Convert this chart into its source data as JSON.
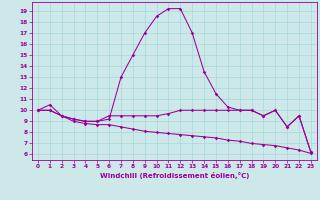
{
  "xlabel": "Windchill (Refroidissement éolien,°C)",
  "xlim": [
    -0.5,
    23.5
  ],
  "ylim": [
    5.5,
    19.8
  ],
  "yticks": [
    6,
    7,
    8,
    9,
    10,
    11,
    12,
    13,
    14,
    15,
    16,
    17,
    18,
    19
  ],
  "xticks": [
    0,
    1,
    2,
    3,
    4,
    5,
    6,
    7,
    8,
    9,
    10,
    11,
    12,
    13,
    14,
    15,
    16,
    17,
    18,
    19,
    20,
    21,
    22,
    23
  ],
  "bg_color": "#cde8e8",
  "line_color": "#990099",
  "grid_color": "#a8d8d8",
  "line1_x": [
    0,
    1,
    2,
    3,
    4,
    5,
    6,
    7,
    8,
    9,
    10,
    11,
    12,
    13,
    14,
    15,
    16,
    17,
    18,
    19,
    20,
    21,
    22,
    23
  ],
  "line1_y": [
    10,
    10.5,
    9.5,
    9.2,
    9.0,
    9.0,
    9.2,
    13.0,
    15.0,
    17.0,
    18.5,
    19.2,
    19.2,
    17.0,
    13.5,
    11.5,
    10.3,
    10.0,
    10.0,
    9.5,
    10.0,
    8.5,
    9.5,
    6.2
  ],
  "line2_x": [
    0,
    1,
    2,
    3,
    4,
    5,
    6,
    7,
    8,
    9,
    10,
    11,
    12,
    13,
    14,
    15,
    16,
    17,
    18,
    19,
    20,
    21,
    22,
    23
  ],
  "line2_y": [
    10,
    10,
    9.5,
    9.2,
    9.0,
    9.0,
    9.5,
    9.5,
    9.5,
    9.5,
    9.5,
    9.7,
    10.0,
    10.0,
    10.0,
    10.0,
    10.0,
    10.0,
    10.0,
    9.5,
    10.0,
    8.5,
    9.5,
    6.2
  ],
  "line3_x": [
    0,
    1,
    2,
    3,
    4,
    5,
    6,
    7,
    8,
    9,
    10,
    11,
    12,
    13,
    14,
    15,
    16,
    17,
    18,
    19,
    20,
    21,
    22,
    23
  ],
  "line3_y": [
    10,
    10,
    9.5,
    9.0,
    8.8,
    8.7,
    8.7,
    8.5,
    8.3,
    8.1,
    8.0,
    7.9,
    7.8,
    7.7,
    7.6,
    7.5,
    7.3,
    7.2,
    7.0,
    6.9,
    6.8,
    6.6,
    6.4,
    6.1
  ],
  "tick_fontsize": 4.2,
  "xlabel_fontsize": 5.0,
  "lw": 0.75,
  "ms": 1.8
}
